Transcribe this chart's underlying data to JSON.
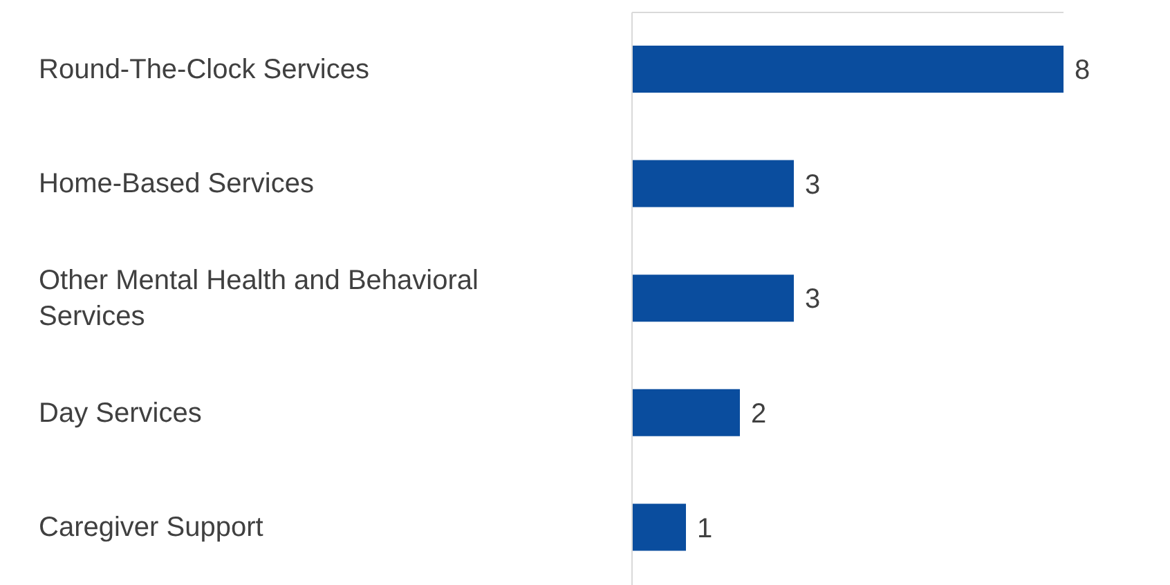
{
  "chart_data": {
    "type": "bar",
    "orientation": "horizontal",
    "categories": [
      "Round-The-Clock Services",
      "Home-Based Services",
      "Other Mental Health and Behavioral Services",
      "Day Services",
      "Caregiver Support"
    ],
    "values": [
      8,
      3,
      3,
      2,
      1
    ],
    "color": "#0a4d9e",
    "data_labels": true,
    "tick_labels": "y"
  }
}
